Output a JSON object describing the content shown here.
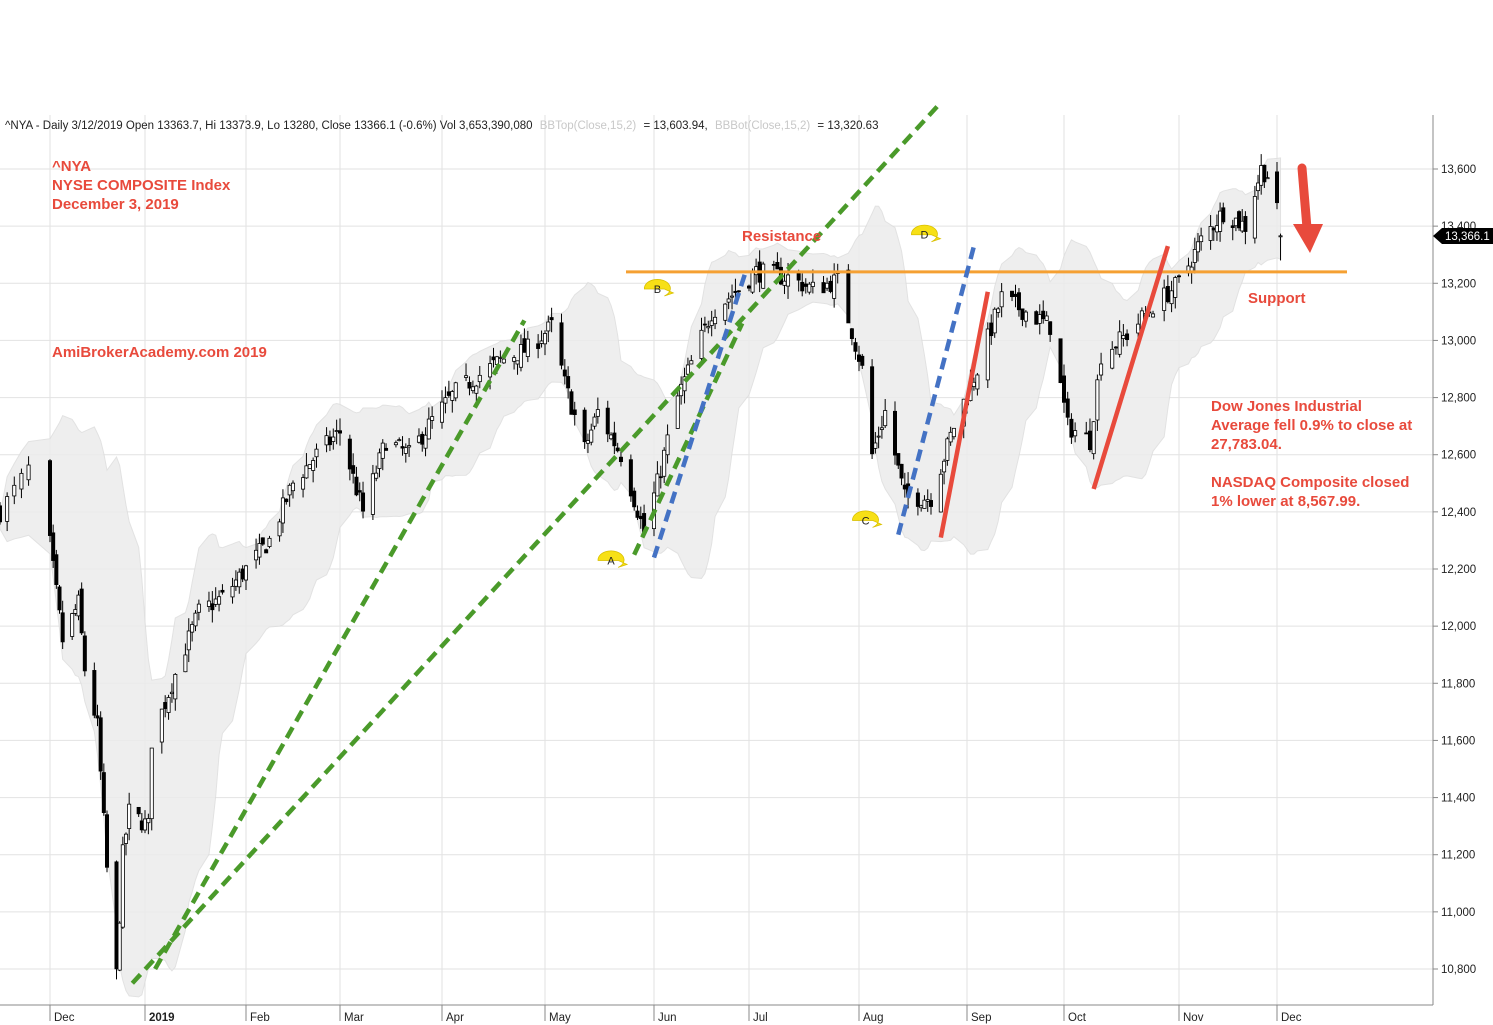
{
  "header": {
    "info_line": "^NYA - Daily 3/12/2019 Open 13363.7, Hi 13373.9, Lo 13280, Close 13366.1 (-0.6%) Vol 3,653,390,080",
    "bb_top_label": "BBTop(Close,15,2)",
    "bb_top_value": "= 13,603.94,",
    "bb_bot_label": "BBBot(Close,15,2)",
    "bb_bot_value": "= 13,320.63"
  },
  "annotations": {
    "ticker": "^NYA",
    "index_name": "NYSE COMPOSITE Index",
    "date": "December 3, 2019",
    "site": "AmiBrokerAcademy.com  2019",
    "resistance": "Resistance",
    "support": "Support",
    "dow_line1": "Dow Jones Industrial",
    "dow_line2": "Average fell 0.9% to close at",
    "dow_line3": "27,783.04.",
    "nasdaq_line1": "NASDAQ Composite closed",
    "nasdaq_line2": "1% lower at 8,567.99."
  },
  "markers": [
    "A",
    "B",
    "C",
    "D"
  ],
  "price_tag": "13,366.1",
  "colors": {
    "up_candle": "#ffffff",
    "down_candle": "#000000",
    "bollinger_band": "#e6e6e6",
    "green_trend": "#4a9a2a",
    "blue_trend": "#4472c4",
    "red_trend": "#e84a3c",
    "support_resistance": "#f5a033",
    "annotation_text": "#e84a3c",
    "marker": "#f7e016"
  },
  "chart_data": {
    "type": "candlestick",
    "title": "^NYA - Daily",
    "y_axis": {
      "ticks": [
        "10,800",
        "11,000",
        "11,200",
        "11,400",
        "11,600",
        "11,800",
        "12,000",
        "12,200",
        "12,400",
        "12,600",
        "12,800",
        "13,000",
        "13,200",
        "13,400",
        "13,600"
      ],
      "tick_values": [
        10800,
        11000,
        11200,
        11400,
        11600,
        11800,
        12000,
        12200,
        12400,
        12600,
        12800,
        13000,
        13200,
        13400,
        13600
      ],
      "range": [
        10700,
        13780
      ],
      "position": "right"
    },
    "x_axis": {
      "labels": [
        "Dec",
        "2019",
        "Feb",
        "Mar",
        "Apr",
        "May",
        "Jun",
        "Jul",
        "Aug",
        "Sep",
        "Oct",
        "Nov",
        "Dec"
      ],
      "range": [
        "2018-11-26",
        "2019-12-17"
      ]
    },
    "grid": true,
    "close_path": [
      [
        "2018-11-26",
        12400
      ],
      [
        "2018-11-30",
        12550
      ],
      [
        "2018-12-04",
        12200
      ],
      [
        "2018-12-07",
        11950
      ],
      [
        "2018-12-12",
        12080
      ],
      [
        "2018-12-14",
        11850
      ],
      [
        "2018-12-18",
        11650
      ],
      [
        "2018-12-21",
        11150
      ],
      [
        "2018-12-24",
        10780
      ],
      [
        "2018-12-26",
        11200
      ],
      [
        "2018-12-28",
        11350
      ],
      [
        "2019-01-03",
        11300
      ],
      [
        "2019-01-04",
        11600
      ],
      [
        "2019-01-10",
        11800
      ],
      [
        "2019-01-18",
        12050
      ],
      [
        "2019-01-25",
        12100
      ],
      [
        "2019-02-01",
        12200
      ],
      [
        "2019-02-08",
        12300
      ],
      [
        "2019-02-15",
        12500
      ],
      [
        "2019-02-22",
        12600
      ],
      [
        "2019-03-01",
        12680
      ],
      [
        "2019-03-08",
        12400
      ],
      [
        "2019-03-15",
        12650
      ],
      [
        "2019-03-22",
        12600
      ],
      [
        "2019-03-29",
        12720
      ],
      [
        "2019-04-05",
        12820
      ],
      [
        "2019-04-12",
        12880
      ],
      [
        "2019-04-18",
        12930
      ],
      [
        "2019-04-26",
        12970
      ],
      [
        "2019-05-03",
        13050
      ],
      [
        "2019-05-07",
        12850
      ],
      [
        "2019-05-13",
        12620
      ],
      [
        "2019-05-17",
        12750
      ],
      [
        "2019-05-24",
        12600
      ],
      [
        "2019-05-31",
        12330
      ],
      [
        "2019-06-04",
        12500
      ],
      [
        "2019-06-10",
        12800
      ],
      [
        "2019-06-20",
        13100
      ],
      [
        "2019-06-28",
        13180
      ],
      [
        "2019-07-03",
        13240
      ],
      [
        "2019-07-12",
        13220
      ],
      [
        "2019-07-19",
        13180
      ],
      [
        "2019-07-26",
        13210
      ],
      [
        "2019-08-02",
        12900
      ],
      [
        "2019-08-05",
        12600
      ],
      [
        "2019-08-09",
        12750
      ],
      [
        "2019-08-15",
        12450
      ],
      [
        "2019-08-23",
        12450
      ],
      [
        "2019-08-30",
        12700
      ],
      [
        "2019-09-06",
        12900
      ],
      [
        "2019-09-13",
        13150
      ],
      [
        "2019-09-20",
        13100
      ],
      [
        "2019-09-27",
        13050
      ],
      [
        "2019-10-02",
        12700
      ],
      [
        "2019-10-08",
        12650
      ],
      [
        "2019-10-11",
        12950
      ],
      [
        "2019-10-18",
        13020
      ],
      [
        "2019-10-25",
        13120
      ],
      [
        "2019-11-01",
        13200
      ],
      [
        "2019-11-08",
        13350
      ],
      [
        "2019-11-15",
        13450
      ],
      [
        "2019-11-22",
        13400
      ],
      [
        "2019-11-27",
        13600
      ],
      [
        "2019-11-29",
        13580
      ],
      [
        "2019-12-02",
        13450
      ],
      [
        "2019-12-03",
        13366.1
      ]
    ],
    "last_bar": {
      "date": "2019-12-03",
      "open": 13363.7,
      "high": 13373.9,
      "low": 13280,
      "close": 13366.1,
      "change_pct": -0.6,
      "volume": 3653390080
    },
    "bollinger": {
      "period": 15,
      "stddev": 2,
      "top": 13603.94,
      "bottom": 13320.63
    },
    "resistance_level": 13240,
    "support_level": 13240,
    "trend_lines": [
      {
        "color": "green",
        "style": "dashed",
        "from": [
          "2018-12-29",
          10750
        ],
        "to": [
          "2019-08-25",
          13820
        ]
      },
      {
        "color": "green",
        "style": "dashed",
        "from": [
          "2019-01-05",
          10800
        ],
        "to": [
          "2019-04-25",
          13070
        ]
      },
      {
        "color": "green",
        "style": "dashed",
        "from": [
          "2019-05-28",
          12250
        ],
        "to": [
          "2019-06-29",
          13060
        ]
      },
      {
        "color": "blue",
        "style": "dashed",
        "from": [
          "2019-06-03",
          12240
        ],
        "to": [
          "2019-06-30",
          13240
        ]
      },
      {
        "color": "blue",
        "style": "dashed",
        "from": [
          "2019-08-13",
          12320
        ],
        "to": [
          "2019-09-05",
          13330
        ]
      },
      {
        "color": "red",
        "style": "solid",
        "from": [
          "2019-08-26",
          12310
        ],
        "to": [
          "2019-09-09",
          13170
        ]
      },
      {
        "color": "red",
        "style": "solid",
        "from": [
          "2019-10-09",
          12480
        ],
        "to": [
          "2019-10-29",
          13330
        ]
      }
    ],
    "marker_points": [
      {
        "label": "A",
        "date": "2019-05-21",
        "value": 12230
      },
      {
        "label": "B",
        "date": "2019-06-04",
        "value": 13180
      },
      {
        "label": "C",
        "date": "2019-08-03",
        "value": 12370
      },
      {
        "label": "D",
        "date": "2019-08-21",
        "value": 13370
      }
    ]
  }
}
